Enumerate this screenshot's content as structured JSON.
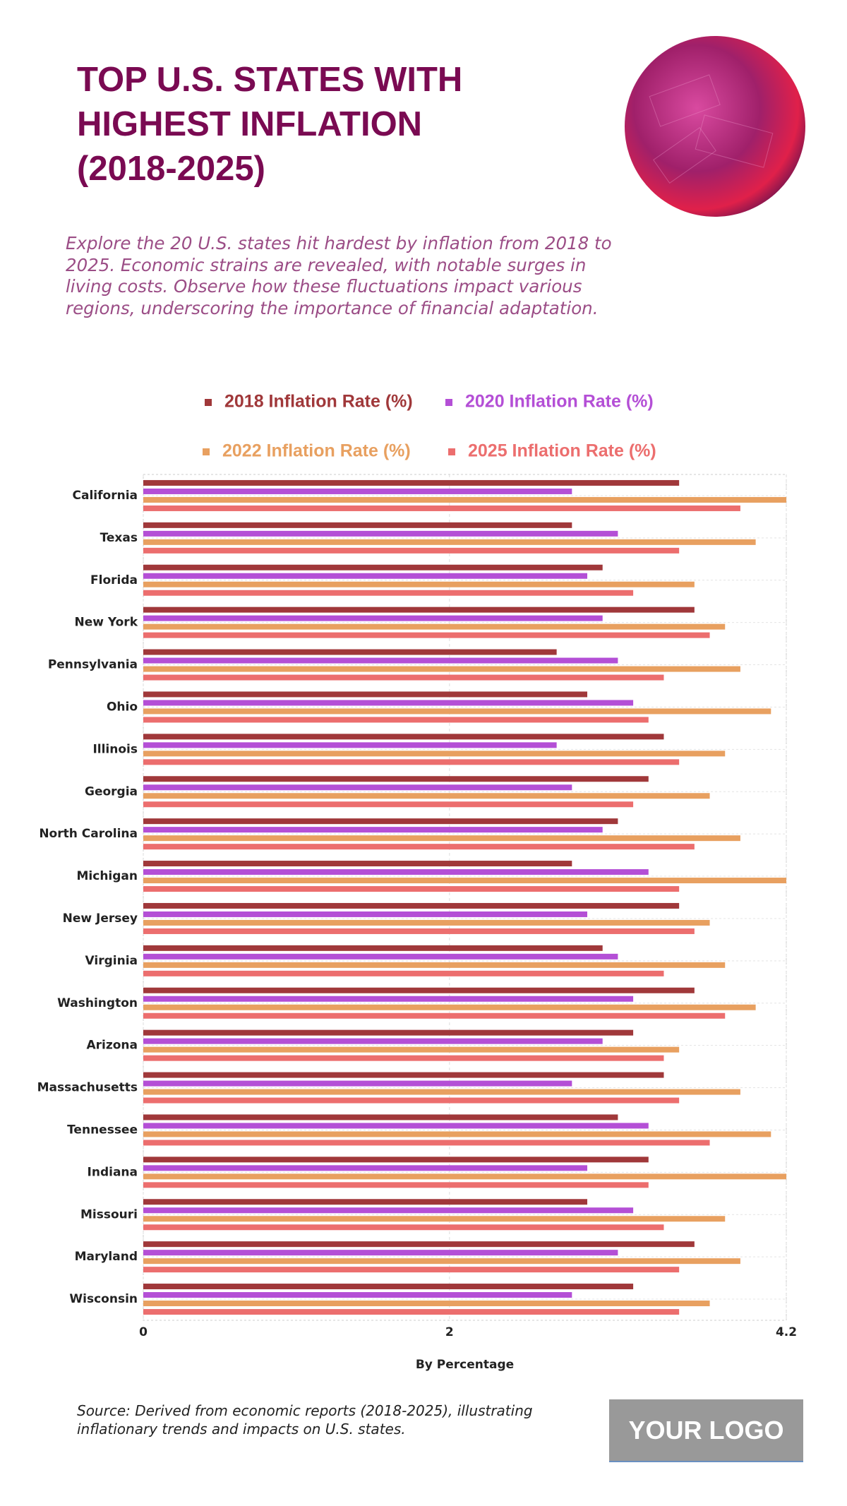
{
  "header": {
    "title": "TOP U.S. STATES WITH HIGHEST INFLATION (2018-2025)",
    "subtitle": "Explore the 20 U.S. states hit hardest by inflation from 2018 to 2025. Economic strains are revealed, with notable surges in living costs. Observe how these fluctuations impact various regions, underscoring the importance of financial adaptation."
  },
  "chart_data": {
    "type": "bar",
    "orientation": "horizontal",
    "categories": [
      "California",
      "Texas",
      "Florida",
      "New York",
      "Pennsylvania",
      "Ohio",
      "Illinois",
      "Georgia",
      "North Carolina",
      "Michigan",
      "New Jersey",
      "Virginia",
      "Washington",
      "Arizona",
      "Massachusetts",
      "Tennessee",
      "Indiana",
      "Missouri",
      "Maryland",
      "Wisconsin"
    ],
    "series": [
      {
        "name": "2018 Inflation Rate (%)",
        "color": "#a0383a",
        "values": [
          3.5,
          2.8,
          3.0,
          3.6,
          2.7,
          2.9,
          3.4,
          3.3,
          3.1,
          2.8,
          3.5,
          3.0,
          3.6,
          3.2,
          3.4,
          3.1,
          3.3,
          2.9,
          3.6,
          3.2
        ]
      },
      {
        "name": "2020 Inflation Rate (%)",
        "color": "#b44fd6",
        "values": [
          2.8,
          3.1,
          2.9,
          3.0,
          3.1,
          3.2,
          2.7,
          2.8,
          3.0,
          3.3,
          2.9,
          3.1,
          3.2,
          3.0,
          2.8,
          3.3,
          2.9,
          3.2,
          3.1,
          2.8
        ]
      },
      {
        "name": "2022 Inflation Rate (%)",
        "color": "#e8a060",
        "values": [
          4.2,
          4.0,
          3.6,
          3.8,
          3.9,
          4.1,
          3.8,
          3.7,
          3.9,
          4.2,
          3.7,
          3.8,
          4.0,
          3.5,
          3.9,
          4.1,
          4.2,
          3.8,
          3.9,
          3.7
        ]
      },
      {
        "name": "2025 Inflation Rate (%)",
        "color": "#ec6e6e",
        "values": [
          3.9,
          3.5,
          3.2,
          3.7,
          3.4,
          3.3,
          3.5,
          3.2,
          3.6,
          3.5,
          3.6,
          3.4,
          3.8,
          3.4,
          3.5,
          3.7,
          3.3,
          3.4,
          3.5,
          3.5
        ]
      }
    ],
    "xlim": [
      0,
      4.2
    ],
    "xticks": [
      0,
      2,
      4.2
    ],
    "xlabel": "By Percentage",
    "grid": true
  },
  "footer": {
    "source": "Source: Derived from economic reports (2018-2025), illustrating inflationary trends and impacts on U.S. states.",
    "logo": "YOUR LOGO"
  }
}
